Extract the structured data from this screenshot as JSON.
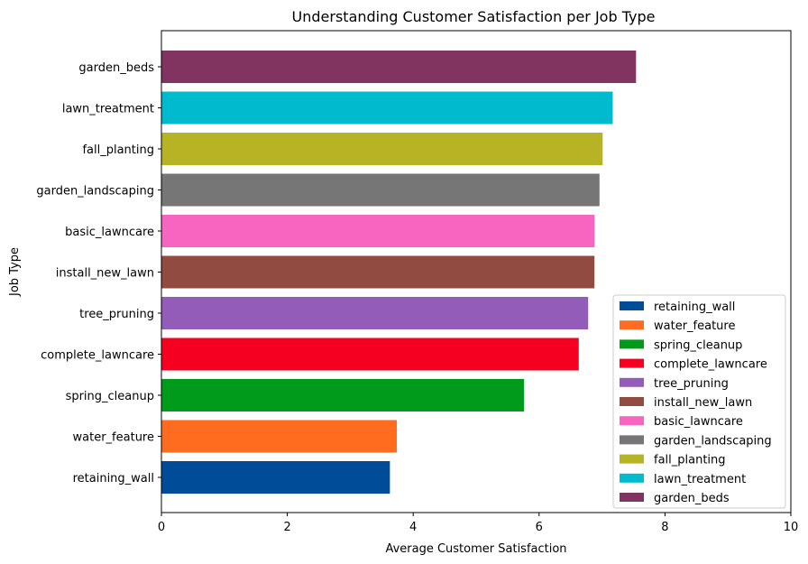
{
  "chart_data": {
    "type": "bar",
    "orientation": "horizontal",
    "title": "Understanding Customer Satisfaction per Job Type",
    "xlabel": "Average Customer Satisfaction",
    "ylabel": "Job Type",
    "xlim": [
      0,
      10
    ],
    "xticks": [
      "0",
      "2",
      "4",
      "6",
      "8",
      "10"
    ],
    "grid": false,
    "legend_position": "bottom-right",
    "categories": [
      "retaining_wall",
      "water_feature",
      "spring_cleanup",
      "complete_lawncare",
      "tree_pruning",
      "install_new_lawn",
      "basic_lawncare",
      "garden_landscaping",
      "fall_planting",
      "lawn_treatment",
      "garden_beds"
    ],
    "values": [
      3.63,
      3.74,
      5.76,
      6.63,
      6.78,
      6.88,
      6.88,
      6.96,
      7.01,
      7.17,
      7.54
    ],
    "colors": [
      "#004c99",
      "#ff6b1f",
      "#009b1a",
      "#f50021",
      "#935cb8",
      "#914b40",
      "#f865c0",
      "#767676",
      "#b6b425",
      "#00bbce",
      "#80345f"
    ]
  }
}
